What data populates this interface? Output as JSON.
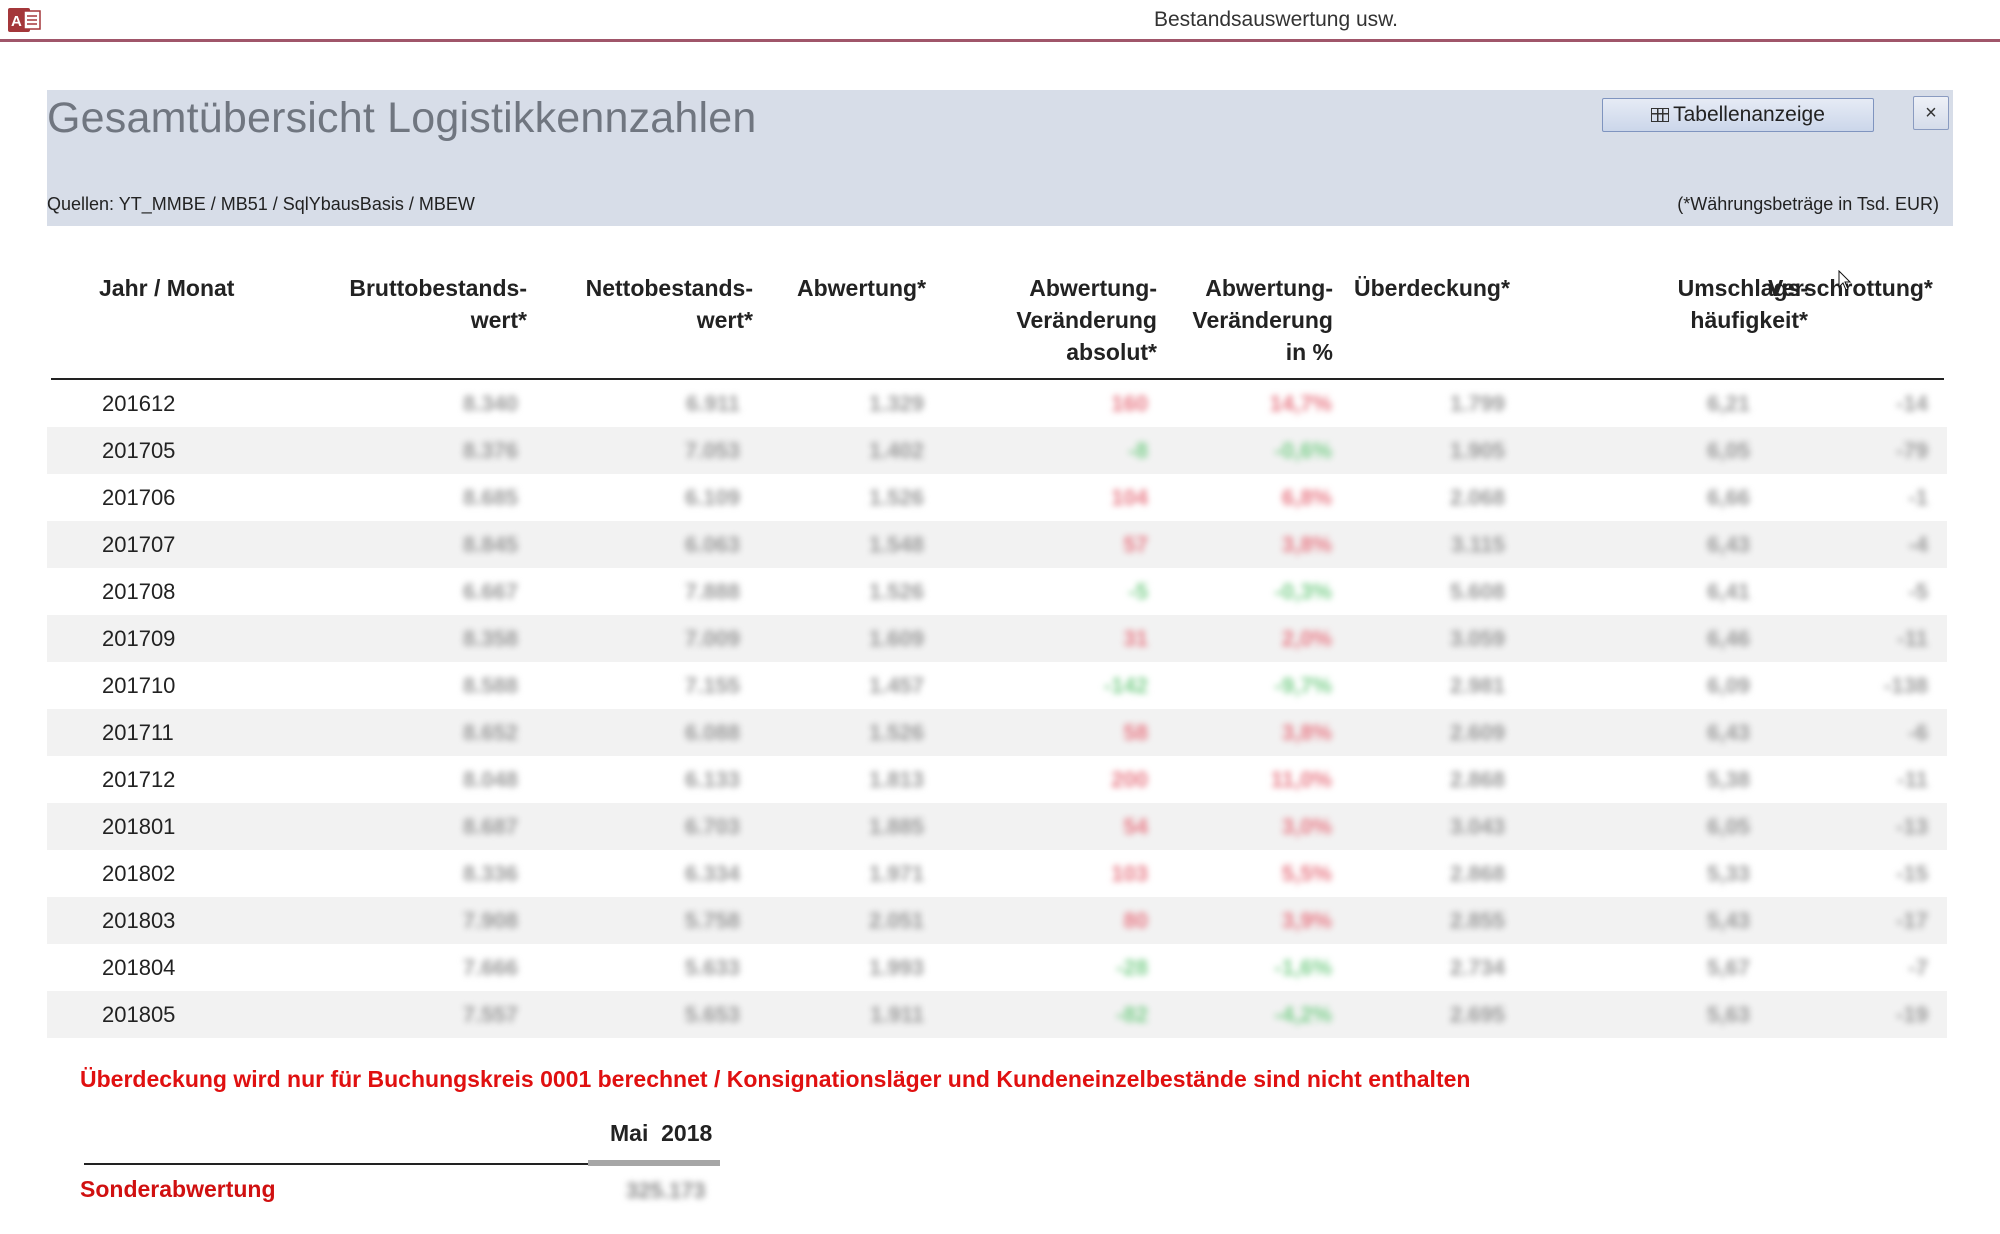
{
  "window": {
    "title": "Bestandsauswertung usw.",
    "app_icon": "access-icon",
    "accent_color": "#a0566a"
  },
  "header": {
    "title": "Gesamtübersicht Logistikkennzahlen",
    "table_button_label": "Tabellenanzeige",
    "table_button_icon": "table-icon",
    "close_label": "×",
    "sources": "Quellen:  YT_MMBE / MB51 / SqlYbausBasis / MBEW",
    "currency_note": "(*Währungsbeträge in Tsd. EUR)",
    "background": "#d7dde8"
  },
  "columns": {
    "jahr_monat": "Jahr / Monat",
    "brutto_1": "Bruttobestands-",
    "brutto_2": "wert*",
    "netto_1": "Nettobestands-",
    "netto_2": "wert*",
    "abwertung": "Abwertung*",
    "abw_abs_1": "Abwertung-",
    "abw_abs_2": "Veränderung",
    "abw_abs_3": "absolut*",
    "abw_pct_1": "Abwertung-",
    "abw_pct_2": "Veränderung",
    "abw_pct_3": "in %",
    "ueberdeckung": "Überdeckung*",
    "umschlag_1": "Umschlags-",
    "umschlag_2": "häufigkeit*",
    "verschrottung": "Verschrottung*"
  },
  "rows": [
    {
      "period": "201612",
      "brutto": "8.340",
      "netto": "6.911",
      "abw": "1.329",
      "abs": "160",
      "pct": "14,7%",
      "ueb": "1.799",
      "ums": "6,21",
      "ver": "-14",
      "sign": "red"
    },
    {
      "period": "201705",
      "brutto": "8.376",
      "netto": "7.053",
      "abw": "1.402",
      "abs": "-8",
      "pct": "-0,6%",
      "ueb": "1.905",
      "ums": "6,05",
      "ver": "-79",
      "sign": "green"
    },
    {
      "period": "201706",
      "brutto": "8.685",
      "netto": "6.109",
      "abw": "1.526",
      "abs": "104",
      "pct": "6,8%",
      "ueb": "2.068",
      "ums": "6,66",
      "ver": "-1",
      "sign": "red"
    },
    {
      "period": "201707",
      "brutto": "8.845",
      "netto": "6.063",
      "abw": "1.548",
      "abs": "57",
      "pct": "3,8%",
      "ueb": "3.115",
      "ums": "6,43",
      "ver": "-4",
      "sign": "red"
    },
    {
      "period": "201708",
      "brutto": "6.667",
      "netto": "7.888",
      "abw": "1.526",
      "abs": "-5",
      "pct": "-0,3%",
      "ueb": "5.608",
      "ums": "6,41",
      "ver": "-5",
      "sign": "green"
    },
    {
      "period": "201709",
      "brutto": "8.358",
      "netto": "7.009",
      "abw": "1.609",
      "abs": "31",
      "pct": "2,0%",
      "ueb": "3.059",
      "ums": "6,46",
      "ver": "-11",
      "sign": "red"
    },
    {
      "period": "201710",
      "brutto": "8.588",
      "netto": "7.155",
      "abw": "1.457",
      "abs": "-142",
      "pct": "-9,7%",
      "ueb": "2.981",
      "ums": "6,09",
      "ver": "-138",
      "sign": "green"
    },
    {
      "period": "201711",
      "brutto": "8.652",
      "netto": "6.088",
      "abw": "1.526",
      "abs": "58",
      "pct": "3,8%",
      "ueb": "2.609",
      "ums": "6,43",
      "ver": "-6",
      "sign": "red"
    },
    {
      "period": "201712",
      "brutto": "8.048",
      "netto": "6.133",
      "abw": "1.813",
      "abs": "200",
      "pct": "11,0%",
      "ueb": "2.868",
      "ums": "5,38",
      "ver": "-11",
      "sign": "red"
    },
    {
      "period": "201801",
      "brutto": "8.687",
      "netto": "6.703",
      "abw": "1.885",
      "abs": "54",
      "pct": "3,0%",
      "ueb": "3.043",
      "ums": "6,05",
      "ver": "-13",
      "sign": "red"
    },
    {
      "period": "201802",
      "brutto": "8.336",
      "netto": "6.334",
      "abw": "1.971",
      "abs": "103",
      "pct": "5,5%",
      "ueb": "2.868",
      "ums": "5,33",
      "ver": "-15",
      "sign": "red"
    },
    {
      "period": "201803",
      "brutto": "7.908",
      "netto": "5.758",
      "abw": "2.051",
      "abs": "80",
      "pct": "3,9%",
      "ueb": "2.855",
      "ums": "5,43",
      "ver": "-17",
      "sign": "red"
    },
    {
      "period": "201804",
      "brutto": "7.666",
      "netto": "5.633",
      "abw": "1.993",
      "abs": "-28",
      "pct": "-1,6%",
      "ueb": "2.734",
      "ums": "5,67",
      "ver": "-7",
      "sign": "green"
    },
    {
      "period": "201805",
      "brutto": "7.557",
      "netto": "5.653",
      "abw": "1.911",
      "abs": "-82",
      "pct": "-4,2%",
      "ueb": "2.695",
      "ums": "5,63",
      "ver": "-19",
      "sign": "green"
    }
  ],
  "warning": "Überdeckung wird nur für Buchungskreis 0001 berechnet / Konsignationsläger und Kundeneinzelbestände sind nicht enthalten",
  "sub_table": {
    "month": "Mai",
    "year": "2018",
    "label": "Sonderabwertung",
    "value": "325.173"
  },
  "colors": {
    "positive_change": "#e87a86",
    "negative_change": "#7ccf8c",
    "warning": "#e01010",
    "alt_row": "#f2f2f2"
  }
}
